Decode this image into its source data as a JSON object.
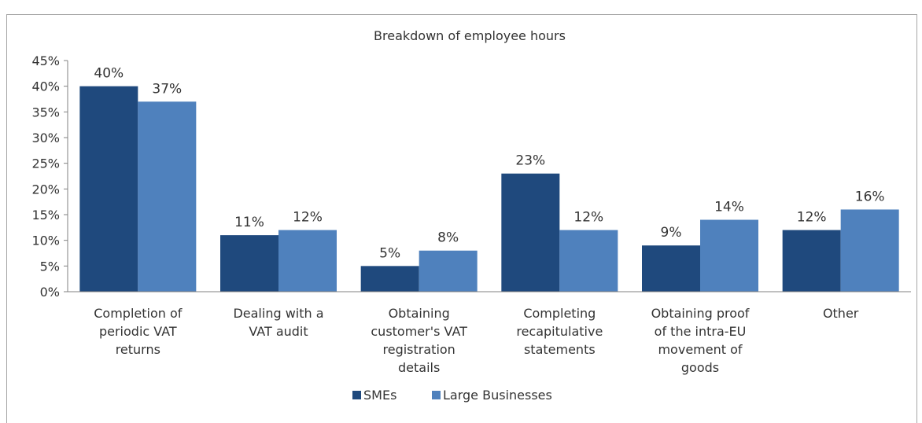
{
  "chart_data": {
    "type": "bar",
    "title": "Breakdown of employee hours",
    "categories": [
      [
        "Completion of",
        "periodic VAT",
        "returns"
      ],
      [
        "Dealing with a",
        "VAT audit"
      ],
      [
        "Obtaining",
        "customer's VAT",
        "registration",
        "details"
      ],
      [
        "Completing",
        "recapitulative",
        "statements"
      ],
      [
        "Obtaining proof",
        "of the intra-EU",
        "movement of",
        "goods"
      ],
      [
        "Other"
      ]
    ],
    "series": [
      {
        "name": "SMEs",
        "color": "#1f497d",
        "values": [
          40,
          11,
          5,
          23,
          9,
          12
        ],
        "labels": [
          "40%",
          "11%",
          "5%",
          "23%",
          "9%",
          "12%"
        ]
      },
      {
        "name": "Large Businesses",
        "color": "#4f81bd",
        "values": [
          37,
          12,
          8,
          12,
          14,
          16
        ],
        "labels": [
          "37%",
          "12%",
          "8%",
          "12%",
          "14%",
          "16%"
        ]
      }
    ],
    "yticks": [
      "0%",
      "5%",
      "10%",
      "15%",
      "20%",
      "25%",
      "30%",
      "35%",
      "40%",
      "45%"
    ],
    "ylim": [
      0,
      45
    ],
    "grid": false,
    "legend_position": "bottom"
  }
}
